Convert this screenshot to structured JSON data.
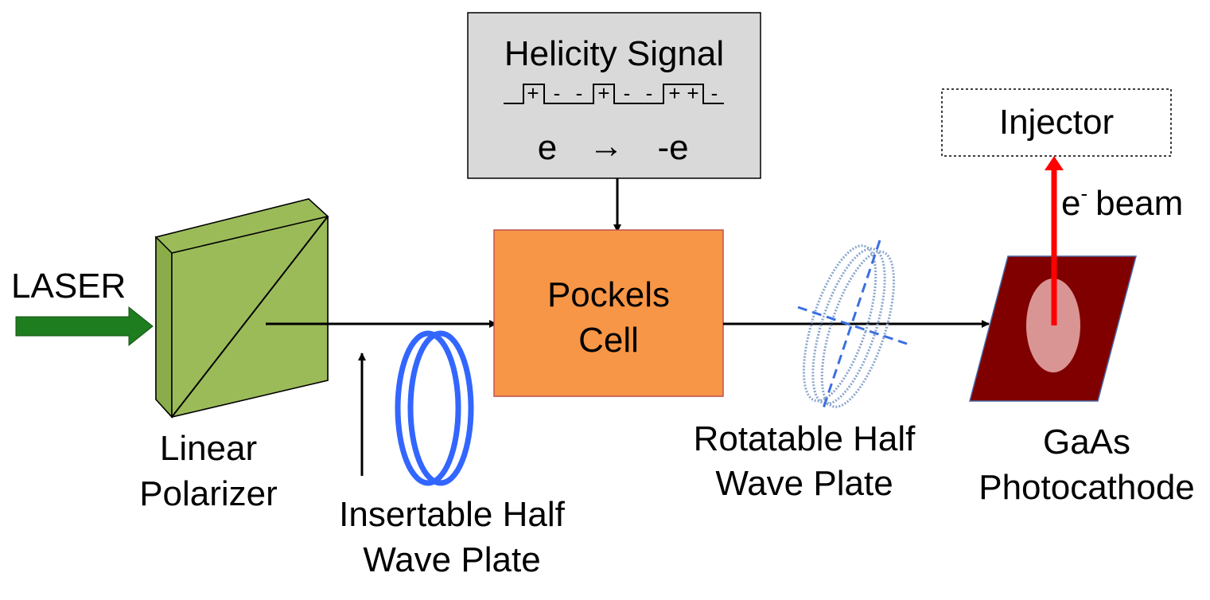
{
  "helicity": {
    "title": "Helicity Signal",
    "signs": [
      "+",
      "-",
      "-",
      "+",
      "-",
      "-",
      "+",
      "+",
      "-"
    ],
    "flip_from": "e",
    "flip_arrow": "→",
    "flip_to": "-e"
  },
  "injector": {
    "label": "Injector"
  },
  "beam": {
    "e_symbol": "e",
    "superscript": "-",
    "text": "beam"
  },
  "laser": {
    "label": "LASER"
  },
  "pockels": {
    "line1": "Pockels",
    "line2": "Cell"
  },
  "polarizer": {
    "line1": "Linear",
    "line2": "Polarizer"
  },
  "insertable_hwp": {
    "line1": "Insertable Half",
    "line2": "Wave Plate"
  },
  "rotatable_hwp": {
    "line1": "Rotatable Half",
    "line2": "Wave Plate"
  },
  "photocathode": {
    "line1": "GaAs",
    "line2": "Photocathode"
  },
  "colors": {
    "laser_arrow": "#1e7d1e",
    "polarizer_fill": "#9bbb59",
    "pockels_fill": "#f79646",
    "pockels_border": "#c0504d",
    "helicity_box": "#d9d9d9",
    "insertable_ring": "#3366ff",
    "rotatable_ring": "#8aa5cc",
    "rotatable_axes": "#3b6fe0",
    "photocathode_fill": "#800000",
    "photocathode_spot": "#d99594",
    "beam_arrow": "#ff0000"
  }
}
